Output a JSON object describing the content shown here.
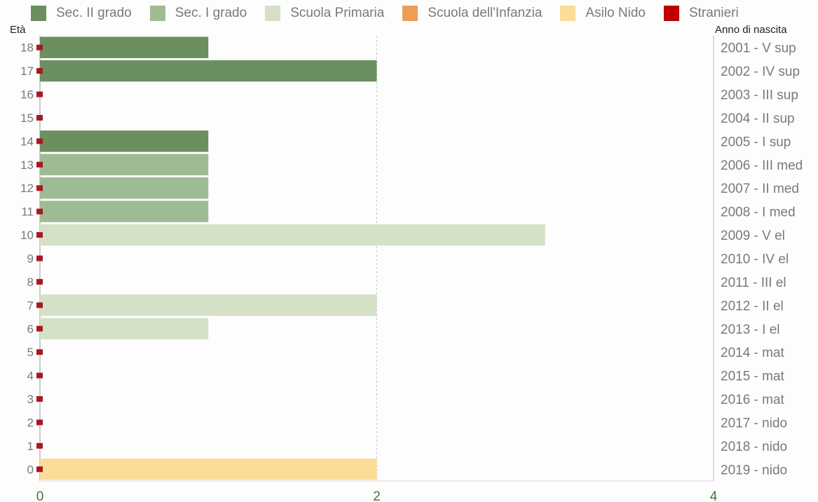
{
  "chart_data": {
    "type": "bar",
    "orientation": "horizontal",
    "left_axis_title": "Età",
    "right_axis_title": "Anno di nascita",
    "xlim": [
      0,
      4
    ],
    "x_ticks": [
      "0",
      "2",
      "4"
    ],
    "grid": true,
    "legend": [
      {
        "name": "Sec. II grado",
        "color": "#6b8f5f"
      },
      {
        "name": "Sec. I grado",
        "color": "#9fbb94"
      },
      {
        "name": "Scuola Primaria",
        "color": "#d5e1c7"
      },
      {
        "name": "Scuola dell'Infanzia",
        "color": "#ee9d55"
      },
      {
        "name": "Asilo Nido",
        "color": "#fddc98"
      },
      {
        "name": "Stranieri",
        "color": "#c00000"
      }
    ],
    "legend_position": "top",
    "rows": [
      {
        "age": "18",
        "year_label": "2001 - V sup",
        "value": 1,
        "series": "Sec. II grado",
        "stranieri": 0
      },
      {
        "age": "17",
        "year_label": "2002 - IV sup",
        "value": 2,
        "series": "Sec. II grado",
        "stranieri": 0
      },
      {
        "age": "16",
        "year_label": "2003 - III sup",
        "value": 0,
        "series": "Sec. II grado",
        "stranieri": 0
      },
      {
        "age": "15",
        "year_label": "2004 - II sup",
        "value": 0,
        "series": "Sec. II grado",
        "stranieri": 0
      },
      {
        "age": "14",
        "year_label": "2005 - I sup",
        "value": 1,
        "series": "Sec. II grado",
        "stranieri": 0
      },
      {
        "age": "13",
        "year_label": "2006 - III med",
        "value": 1,
        "series": "Sec. I grado",
        "stranieri": 0
      },
      {
        "age": "12",
        "year_label": "2007 - II med",
        "value": 1,
        "series": "Sec. I grado",
        "stranieri": 0
      },
      {
        "age": "11",
        "year_label": "2008 - I med",
        "value": 1,
        "series": "Sec. I grado",
        "stranieri": 0
      },
      {
        "age": "10",
        "year_label": "2009 - V el",
        "value": 3,
        "series": "Scuola Primaria",
        "stranieri": 0
      },
      {
        "age": "9",
        "year_label": "2010 - IV el",
        "value": 0,
        "series": "Scuola Primaria",
        "stranieri": 0
      },
      {
        "age": "8",
        "year_label": "2011 - III el",
        "value": 0,
        "series": "Scuola Primaria",
        "stranieri": 0
      },
      {
        "age": "7",
        "year_label": "2012 - II el",
        "value": 2,
        "series": "Scuola Primaria",
        "stranieri": 0
      },
      {
        "age": "6",
        "year_label": "2013 - I el",
        "value": 1,
        "series": "Scuola Primaria",
        "stranieri": 0
      },
      {
        "age": "5",
        "year_label": "2014 - mat",
        "value": 0,
        "series": "Scuola dell'Infanzia",
        "stranieri": 0
      },
      {
        "age": "4",
        "year_label": "2015 - mat",
        "value": 0,
        "series": "Scuola dell'Infanzia",
        "stranieri": 0
      },
      {
        "age": "3",
        "year_label": "2016 - mat",
        "value": 0,
        "series": "Scuola dell'Infanzia",
        "stranieri": 0
      },
      {
        "age": "2",
        "year_label": "2017 - nido",
        "value": 0,
        "series": "Asilo Nido",
        "stranieri": 0
      },
      {
        "age": "1",
        "year_label": "2018 - nido",
        "value": 0,
        "series": "Asilo Nido",
        "stranieri": 0
      },
      {
        "age": "0",
        "year_label": "2019 - nido",
        "value": 2,
        "series": "Asilo Nido",
        "stranieri": 0
      }
    ]
  }
}
